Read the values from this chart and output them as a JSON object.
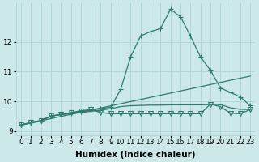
{
  "title": "",
  "xlabel": "Humidex (Indice chaleur)",
  "ylabel": "",
  "bg_color": "#cce8e8",
  "line_color": "#2d7a6e",
  "xlim": [
    -0.5,
    23.5
  ],
  "ylim": [
    8.85,
    13.3
  ],
  "yticks": [
    9,
    10,
    11,
    12
  ],
  "xticks": [
    0,
    1,
    2,
    3,
    4,
    5,
    6,
    7,
    8,
    9,
    10,
    11,
    12,
    13,
    14,
    15,
    16,
    17,
    18,
    19,
    20,
    21,
    22,
    23
  ],
  "series": [
    {
      "x": [
        0,
        1,
        2,
        3,
        4,
        5,
        6,
        7,
        8,
        9,
        10,
        11,
        12,
        13,
        14,
        15,
        16,
        17,
        18,
        19,
        20,
        21,
        22,
        23
      ],
      "y": [
        9.2,
        9.3,
        9.35,
        9.5,
        9.55,
        9.6,
        9.65,
        9.7,
        9.75,
        9.8,
        10.4,
        11.5,
        12.2,
        12.35,
        12.45,
        13.1,
        12.85,
        12.2,
        11.5,
        11.05,
        10.45,
        10.3,
        10.15,
        9.85
      ],
      "marker": "+",
      "markersize": 4,
      "linewidth": 0.9,
      "markerfacecolor": "#2d7a6e",
      "hollow": false
    },
    {
      "x": [
        0,
        23
      ],
      "y": [
        9.2,
        10.85
      ],
      "marker": null,
      "markersize": 0,
      "linewidth": 0.9,
      "markerfacecolor": "#2d7a6e",
      "hollow": false
    },
    {
      "x": [
        0,
        1,
        2,
        3,
        4,
        5,
        6,
        7,
        8,
        9,
        10,
        11,
        12,
        13,
        14,
        15,
        16,
        17,
        18,
        19,
        20,
        21,
        22,
        23
      ],
      "y": [
        9.2,
        9.27,
        9.33,
        9.5,
        9.55,
        9.58,
        9.62,
        9.66,
        9.7,
        9.75,
        9.82,
        9.85,
        9.86,
        9.87,
        9.87,
        9.88,
        9.88,
        9.88,
        9.88,
        9.89,
        9.89,
        9.78,
        9.73,
        9.72
      ],
      "marker": null,
      "markersize": 0,
      "linewidth": 0.9,
      "markerfacecolor": "#2d7a6e",
      "hollow": false
    },
    {
      "x": [
        0,
        1,
        2,
        3,
        4,
        5,
        6,
        7,
        8,
        9,
        10,
        11,
        12,
        13,
        14,
        15,
        16,
        17,
        18,
        19,
        20,
        21,
        22,
        23
      ],
      "y": [
        9.2,
        9.28,
        9.35,
        9.5,
        9.56,
        9.62,
        9.68,
        9.72,
        9.62,
        9.58,
        9.58,
        9.58,
        9.58,
        9.58,
        9.58,
        9.58,
        9.58,
        9.58,
        9.58,
        9.9,
        9.82,
        9.6,
        9.58,
        9.72
      ],
      "marker": "v",
      "markersize": 4,
      "linewidth": 0.9,
      "markerfacecolor": "none",
      "hollow": true
    }
  ],
  "grid_color": "#aad4d4",
  "tick_fontsize": 6.5,
  "label_fontsize": 7.5
}
